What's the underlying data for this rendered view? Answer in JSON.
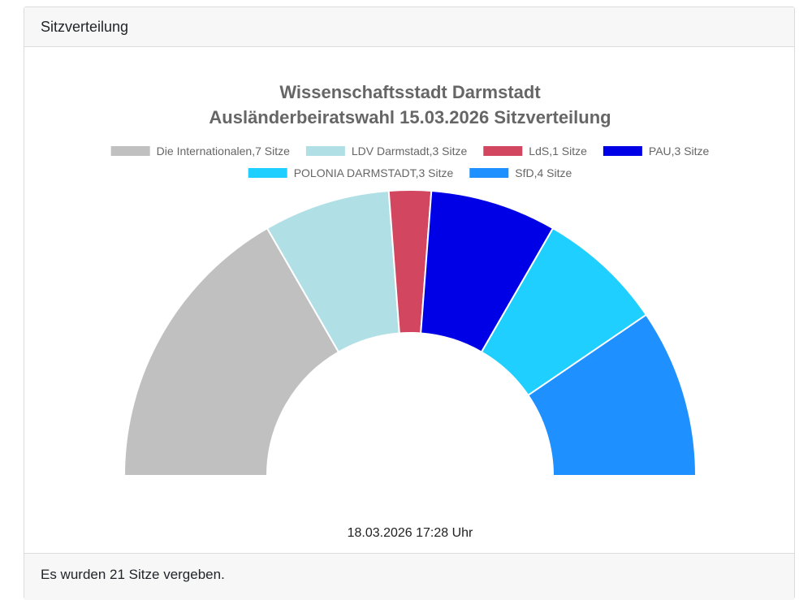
{
  "header": {
    "title": "Sitzverteilung"
  },
  "footer": {
    "text": "Es wurden 21 Sitze vergeben."
  },
  "chart_data": {
    "type": "pie",
    "subtype": "parliament-semicircle",
    "title_line1": "Wissenschaftsstadt Darmstadt",
    "title_line2": "Ausländerbeiratswahl 15.03.2026 Sitzverteilung",
    "timestamp": "18.03.2026 17:28 Uhr",
    "total_seats": 21,
    "legend_placement": "top-center",
    "slices": [
      {
        "label": "Die Internationalen,7 Sitze",
        "party": "Die Internationalen",
        "seats": 7,
        "color": "#c0c0c0"
      },
      {
        "label": "LDV Darmstadt,3 Sitze",
        "party": "LDV Darmstadt",
        "seats": 3,
        "color": "#b0e0e6"
      },
      {
        "label": "LdS,1 Sitze",
        "party": "LdS",
        "seats": 1,
        "color": "#d2465f"
      },
      {
        "label": "PAU,3 Sitze",
        "party": "PAU",
        "seats": 3,
        "color": "#0000e6"
      },
      {
        "label": "POLONIA DARMSTADT,3 Sitze",
        "party": "POLONIA DARMSTADT",
        "seats": 3,
        "color": "#1ecfff"
      },
      {
        "label": "SfD,4 Sitze",
        "party": "SfD",
        "seats": 4,
        "color": "#1e90ff"
      }
    ]
  }
}
